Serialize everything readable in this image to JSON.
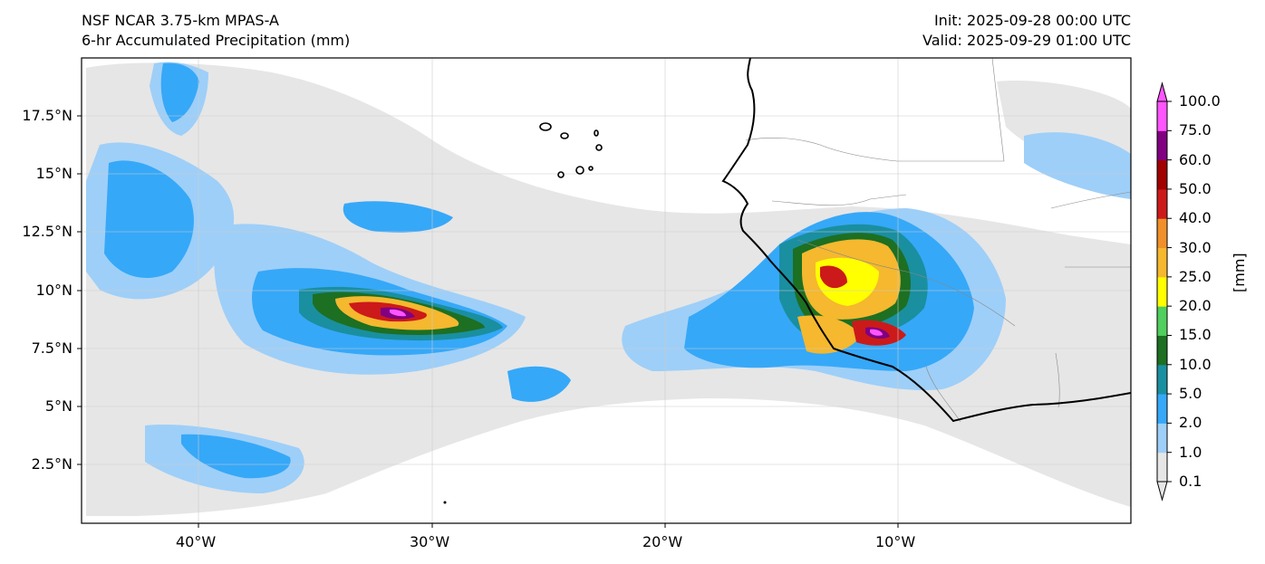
{
  "titles": {
    "left_line1": "NSF NCAR 3.75-km MPAS-A",
    "left_line2": "6-hr Accumulated Precipitation (mm)",
    "right_line1": "Init: 2025-09-28 00:00 UTC",
    "right_line2": "Valid: 2025-09-29 01:00 UTC"
  },
  "map": {
    "lon_range": [
      -45,
      0
    ],
    "lat_range": [
      0,
      20
    ],
    "lat_labels": [
      "17.5°N",
      "15°N",
      "12.5°N",
      "10°N",
      "7.5°N",
      "5°N",
      "2.5°N"
    ],
    "lon_labels": [
      "40°W",
      "30°W",
      "20°W",
      "10°W"
    ],
    "grid": true
  },
  "colorbar": {
    "units": "[mm]",
    "levels": [
      "0.1",
      "1.0",
      "2.0",
      "5.0",
      "10.0",
      "15.0",
      "20.0",
      "25.0",
      "30.0",
      "40.0",
      "50.0",
      "60.0",
      "75.0",
      "100.0"
    ],
    "colors": [
      "#e6e6e6",
      "#9ecff8",
      "#36a8f8",
      "#1a8fa0",
      "#1d6f22",
      "#4fcf5d",
      "#ffff00",
      "#f5b82e",
      "#f0902a",
      "#cc1a1a",
      "#a00000",
      "#800080",
      "#ff55ff"
    ]
  }
}
